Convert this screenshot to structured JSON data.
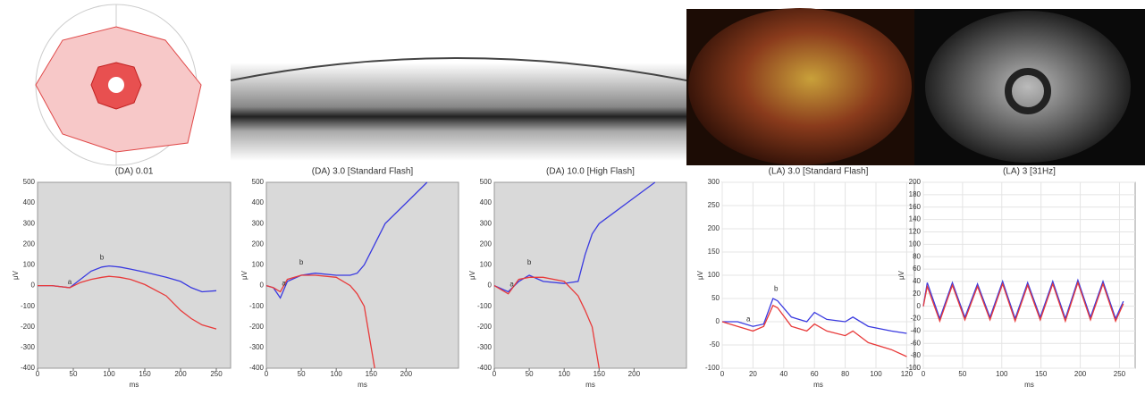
{
  "chart_data": [
    {
      "type": "line",
      "title": "(DA) 0.01",
      "xlabel": "ms",
      "ylabel": "μV",
      "xlim": [
        0,
        270
      ],
      "ylim": [
        -400,
        500
      ],
      "xticks": [
        0,
        50,
        100,
        150,
        200,
        250
      ],
      "yticks": [
        -400,
        -300,
        -200,
        -100,
        0,
        100,
        200,
        300,
        400,
        500
      ],
      "background": "#d9d9d9",
      "grid": false,
      "x": [
        0,
        20,
        45,
        60,
        75,
        90,
        100,
        115,
        130,
        150,
        180,
        200,
        215,
        230,
        250
      ],
      "series": [
        {
          "color": "#3a3ae0",
          "values": [
            0,
            0,
            -10,
            30,
            70,
            90,
            95,
            90,
            80,
            65,
            40,
            20,
            -10,
            -30,
            -25
          ]
        },
        {
          "color": "#e83a3a",
          "values": [
            0,
            0,
            -10,
            15,
            30,
            40,
            45,
            40,
            30,
            5,
            -50,
            -120,
            -160,
            -190,
            -210
          ]
        }
      ],
      "annotations": [
        {
          "text": "a",
          "x": 45,
          "y": 15
        },
        {
          "text": "b",
          "x": 90,
          "y": 135
        }
      ]
    },
    {
      "type": "line",
      "title": "(DA) 3.0 [Standard Flash]",
      "xlabel": "ms",
      "ylabel": "μV",
      "xlim": [
        0,
        275
      ],
      "ylim": [
        -400,
        500
      ],
      "xticks": [
        0,
        50,
        100,
        150,
        200
      ],
      "yticks": [
        -400,
        -300,
        -200,
        -100,
        0,
        100,
        200,
        300,
        400,
        500
      ],
      "background": "#d9d9d9",
      "grid": false,
      "x": [
        0,
        10,
        20,
        30,
        50,
        70,
        100,
        120,
        130,
        140,
        155,
        170,
        200,
        230
      ],
      "series": [
        {
          "color": "#3a3ae0",
          "values": [
            0,
            -10,
            -60,
            20,
            50,
            60,
            50,
            50,
            60,
            100,
            200,
            300,
            400,
            500
          ]
        },
        {
          "color": "#e83a3a",
          "values": [
            0,
            -10,
            -30,
            30,
            50,
            50,
            40,
            0,
            -40,
            -100,
            -400,
            null,
            null,
            null
          ]
        }
      ],
      "annotations": [
        {
          "text": "a",
          "x": 25,
          "y": 10
        },
        {
          "text": "b",
          "x": 50,
          "y": 110
        }
      ]
    },
    {
      "type": "line",
      "title": "(DA) 10.0 [High Flash]",
      "xlabel": "ms",
      "ylabel": "μV",
      "xlim": [
        0,
        275
      ],
      "ylim": [
        -400,
        500
      ],
      "xticks": [
        0,
        50,
        100,
        150,
        200
      ],
      "yticks": [
        -400,
        -300,
        -200,
        -100,
        0,
        100,
        200,
        300,
        400,
        500
      ],
      "background": "#d9d9d9",
      "grid": false,
      "x": [
        0,
        20,
        35,
        50,
        70,
        100,
        120,
        130,
        140,
        150,
        170,
        190,
        230
      ],
      "series": [
        {
          "color": "#3a3ae0",
          "values": [
            0,
            -30,
            20,
            50,
            20,
            10,
            20,
            150,
            250,
            300,
            350,
            400,
            500
          ]
        },
        {
          "color": "#e83a3a",
          "values": [
            0,
            -40,
            30,
            40,
            40,
            20,
            -50,
            -120,
            -200,
            -400,
            null,
            null,
            null
          ]
        }
      ],
      "annotations": [
        {
          "text": "a",
          "x": 25,
          "y": 5
        },
        {
          "text": "b",
          "x": 50,
          "y": 110
        }
      ]
    },
    {
      "type": "line",
      "title": "(LA) 3.0 [Standard Flash]",
      "xlabel": "ms",
      "ylabel": "μV",
      "xlim": [
        0,
        125
      ],
      "ylim": [
        -100,
        300
      ],
      "xticks": [
        0,
        20,
        40,
        60,
        80,
        100,
        120
      ],
      "yticks": [
        -100,
        -50,
        0,
        50,
        100,
        150,
        200,
        250,
        300
      ],
      "background": "#ffffff",
      "grid": true,
      "x": [
        0,
        10,
        20,
        27,
        33,
        36,
        45,
        55,
        60,
        68,
        80,
        85,
        95,
        110,
        120
      ],
      "series": [
        {
          "color": "#3a3ae0",
          "values": [
            0,
            0,
            -10,
            -5,
            50,
            45,
            10,
            0,
            20,
            5,
            0,
            10,
            -10,
            -20,
            -25
          ]
        },
        {
          "color": "#e83a3a",
          "values": [
            0,
            -10,
            -20,
            -10,
            35,
            30,
            -10,
            -20,
            -5,
            -20,
            -30,
            -20,
            -45,
            -60,
            -75
          ]
        }
      ],
      "annotations": [
        {
          "text": "a",
          "x": 17,
          "y": 5
        },
        {
          "text": "b",
          "x": 35,
          "y": 70
        }
      ]
    },
    {
      "type": "line",
      "title": "(LA) 3 [31Hz]",
      "xlabel": "ms",
      "ylabel": "μV",
      "xlim": [
        0,
        270
      ],
      "ylim": [
        -100,
        200
      ],
      "xticks": [
        0,
        50,
        100,
        150,
        200,
        250
      ],
      "yticks": [
        -100,
        -80,
        -60,
        -40,
        -20,
        0,
        20,
        40,
        60,
        80,
        100,
        120,
        140,
        160,
        180,
        200
      ],
      "background": "#ffffff",
      "grid": true,
      "x": [
        0,
        5,
        21,
        37,
        53,
        69,
        85,
        101,
        117,
        133,
        149,
        165,
        181,
        197,
        213,
        229,
        245,
        255
      ],
      "series": [
        {
          "color": "#3a3ae0",
          "values": [
            0,
            38,
            -20,
            38,
            -18,
            36,
            -18,
            40,
            -20,
            38,
            -18,
            40,
            -20,
            42,
            -18,
            40,
            -20,
            8
          ]
        },
        {
          "color": "#e83a3a",
          "values": [
            0,
            32,
            -24,
            34,
            -22,
            32,
            -22,
            36,
            -24,
            34,
            -22,
            36,
            -24,
            38,
            -22,
            36,
            -24,
            4
          ]
        }
      ],
      "annotations": []
    }
  ]
}
